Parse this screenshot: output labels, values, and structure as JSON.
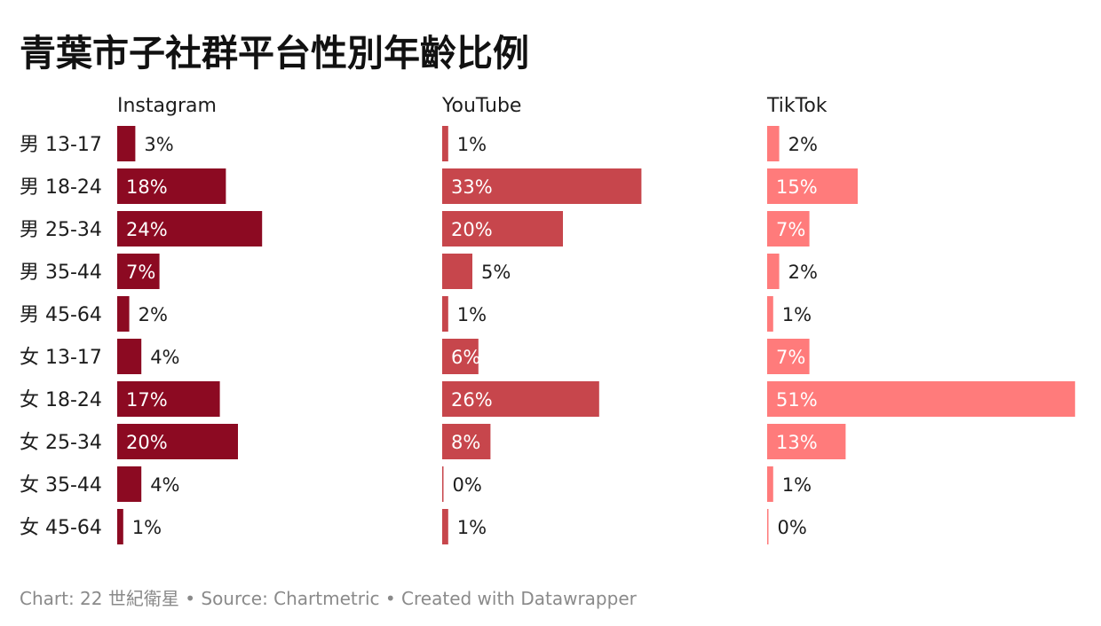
{
  "title": "青葉市子社群平台性別年齡比例",
  "footer": "Chart: 22 世紀衛星 • Source: Chartmetric • Created with Datawrapper",
  "chart_data": {
    "type": "bar",
    "orientation": "horizontal",
    "categories": [
      "男 13-17",
      "男 18-24",
      "男 25-34",
      "男 35-44",
      "男 45-64",
      "女 13-17",
      "女 18-24",
      "女 25-34",
      "女 35-44",
      "女 45-64"
    ],
    "series": [
      {
        "name": "Instagram",
        "color": "#8c0a22",
        "values": [
          3,
          18,
          24,
          7,
          2,
          4,
          17,
          20,
          4,
          1
        ]
      },
      {
        "name": "YouTube",
        "color": "#c7464c",
        "values": [
          1,
          33,
          20,
          5,
          1,
          6,
          26,
          8,
          0,
          1
        ]
      },
      {
        "name": "TikTok",
        "color": "#ff7b7b",
        "values": [
          2,
          15,
          7,
          2,
          1,
          7,
          51,
          13,
          1,
          0
        ]
      }
    ],
    "value_suffix": "%",
    "grid": false,
    "legend": "panel-titles"
  }
}
